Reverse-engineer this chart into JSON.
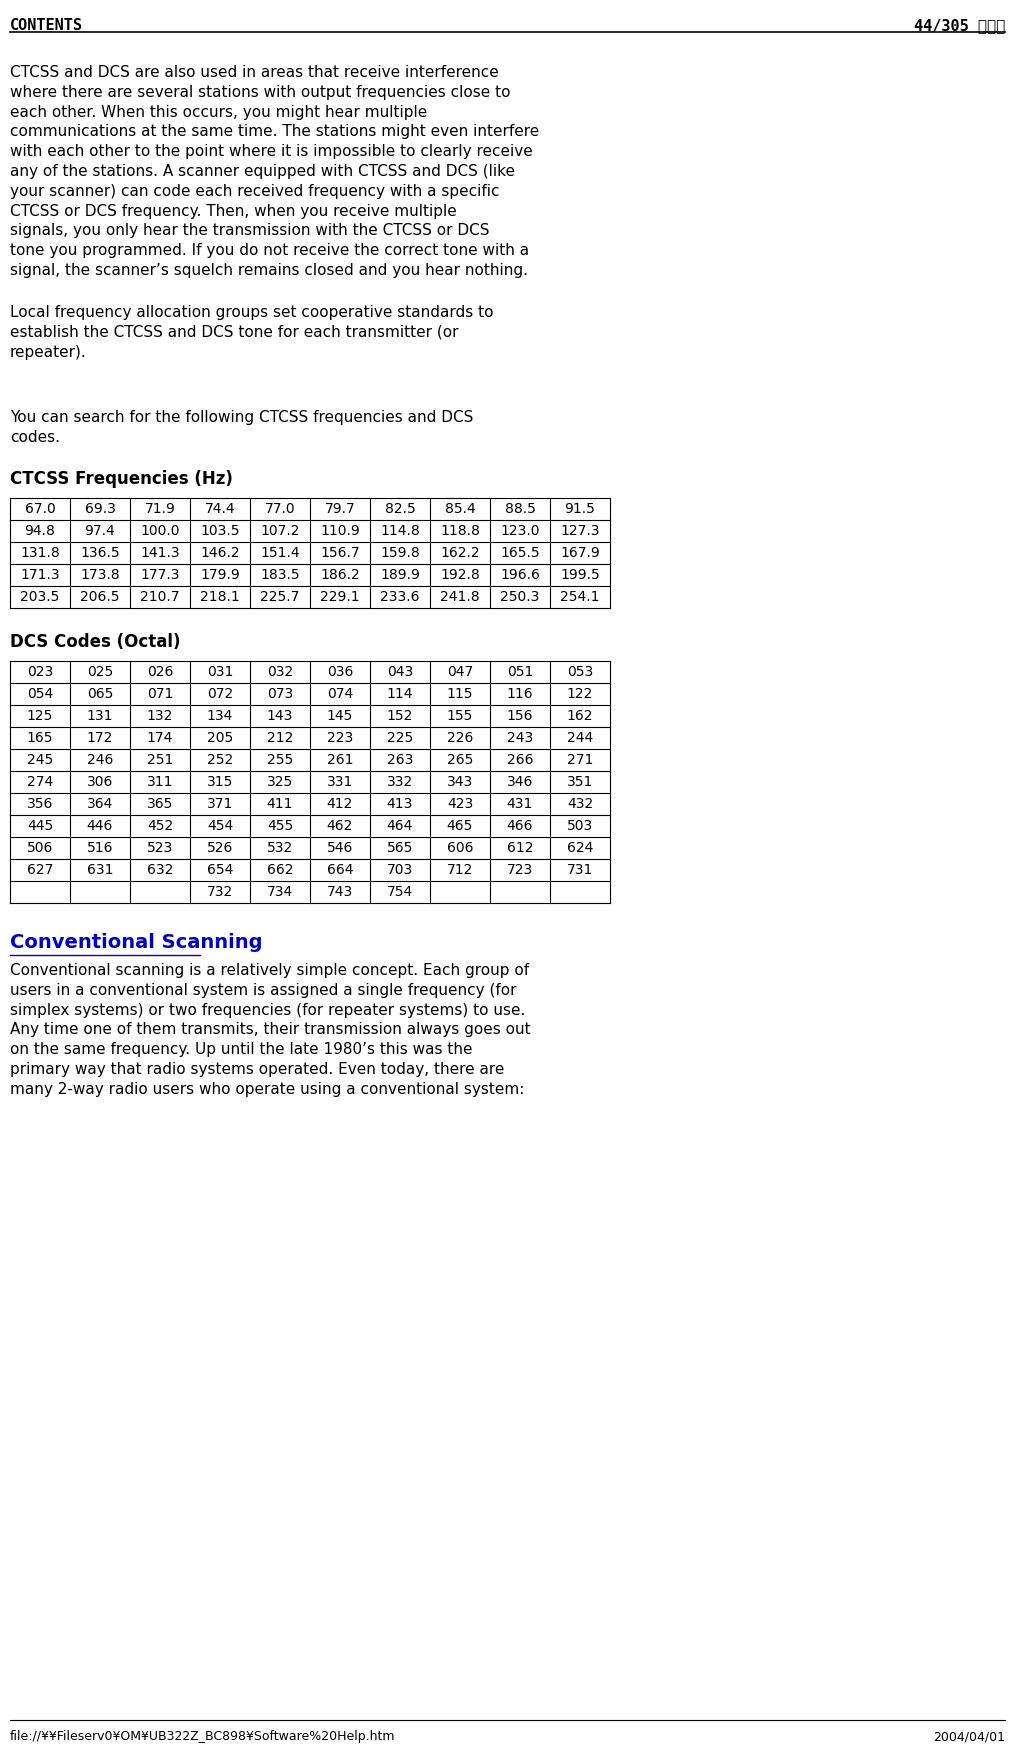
{
  "header_left": "CONTENTS",
  "header_right": "44/305 ページ",
  "footer_left": "file://¥¥Fileserv0¥OM¥UB322Z_BC898¥Software%20Help.htm",
  "footer_right": "2004/04/01",
  "bg_color": "#ffffff",
  "text_color": "#000000",
  "body_text_1": "CTCSS and DCS are also used in areas that receive interference\nwhere there are several stations with output frequencies close to\neach other. When this occurs, you might hear multiple\ncommunications at the same time. The stations might even interfere\nwith each other to the point where it is impossible to clearly receive\nany of the stations. A scanner equipped with CTCSS and DCS (like\nyour scanner) can code each received frequency with a specific\nCTCSS or DCS frequency. Then, when you receive multiple\nsignals, you only hear the transmission with the CTCSS or DCS\ntone you programmed. If you do not receive the correct tone with a\nsignal, the scanner’s squelch remains closed and you hear nothing.",
  "body_text_2": "Local frequency allocation groups set cooperative standards to\nestablish the CTCSS and DCS tone for each transmitter (or\nrepeater).",
  "body_text_3": "You can search for the following CTCSS frequencies and DCS\ncodes.",
  "ctcss_label": "CTCSS Frequencies (Hz)",
  "ctcss_data": [
    [
      "67.0",
      "69.3",
      "71.9",
      "74.4",
      "77.0",
      "79.7",
      "82.5",
      "85.4",
      "88.5",
      "91.5"
    ],
    [
      "94.8",
      "97.4",
      "100.0",
      "103.5",
      "107.2",
      "110.9",
      "114.8",
      "118.8",
      "123.0",
      "127.3"
    ],
    [
      "131.8",
      "136.5",
      "141.3",
      "146.2",
      "151.4",
      "156.7",
      "159.8",
      "162.2",
      "165.5",
      "167.9"
    ],
    [
      "171.3",
      "173.8",
      "177.3",
      "179.9",
      "183.5",
      "186.2",
      "189.9",
      "192.8",
      "196.6",
      "199.5"
    ],
    [
      "203.5",
      "206.5",
      "210.7",
      "218.1",
      "225.7",
      "229.1",
      "233.6",
      "241.8",
      "250.3",
      "254.1"
    ]
  ],
  "dcs_label": "DCS Codes (Octal)",
  "dcs_data": [
    [
      "023",
      "025",
      "026",
      "031",
      "032",
      "036",
      "043",
      "047",
      "051",
      "053"
    ],
    [
      "054",
      "065",
      "071",
      "072",
      "073",
      "074",
      "114",
      "115",
      "116",
      "122"
    ],
    [
      "125",
      "131",
      "132",
      "134",
      "143",
      "145",
      "152",
      "155",
      "156",
      "162"
    ],
    [
      "165",
      "172",
      "174",
      "205",
      "212",
      "223",
      "225",
      "226",
      "243",
      "244"
    ],
    [
      "245",
      "246",
      "251",
      "252",
      "255",
      "261",
      "263",
      "265",
      "266",
      "271"
    ],
    [
      "274",
      "306",
      "311",
      "315",
      "325",
      "331",
      "332",
      "343",
      "346",
      "351"
    ],
    [
      "356",
      "364",
      "365",
      "371",
      "411",
      "412",
      "413",
      "423",
      "431",
      "432"
    ],
    [
      "445",
      "446",
      "452",
      "454",
      "455",
      "462",
      "464",
      "465",
      "466",
      "503"
    ],
    [
      "506",
      "516",
      "523",
      "526",
      "532",
      "546",
      "565",
      "606",
      "612",
      "624"
    ],
    [
      "627",
      "631",
      "632",
      "654",
      "662",
      "664",
      "703",
      "712",
      "723",
      "731"
    ],
    [
      "",
      "",
      "",
      "732",
      "734",
      "743",
      "754",
      "",
      "",
      ""
    ]
  ],
  "conv_scan_title": "Conventional Scanning",
  "conv_scan_text": "Conventional scanning is a relatively simple concept. Each group of\nusers in a conventional system is assigned a single frequency (for\nsimplex systems) or two frequencies (for repeater systems) to use.\nAny time one of them transmits, their transmission always goes out\non the same frequency. Up until the late 1980’s this was the\nprimary way that radio systems operated. Even today, there are\nmany 2-way radio users who operate using a conventional system:",
  "table_border_color": "#000000",
  "table_bg_color": "#ffffff",
  "font_size_body": 11,
  "font_size_header": 10,
  "font_size_table": 10,
  "font_size_section": 12,
  "font_size_footer": 9
}
